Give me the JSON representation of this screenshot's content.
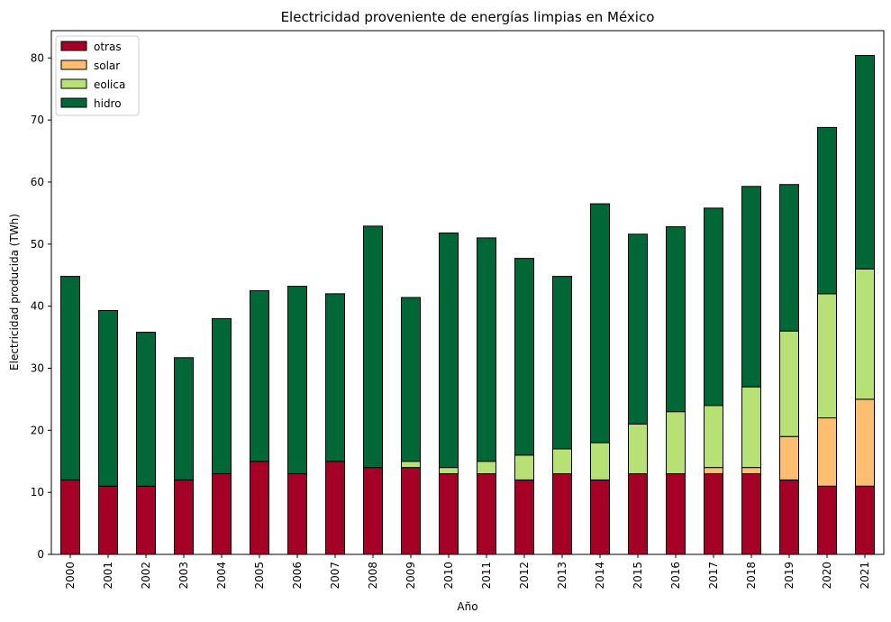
{
  "chart_data": {
    "type": "bar",
    "stacked": true,
    "title": "Electricidad proveniente de energías limpias en México",
    "xlabel": "Año",
    "ylabel": "Electricidad producida (TWh)",
    "ylim": [
      0,
      84.4
    ],
    "yticks": [
      0,
      10,
      20,
      30,
      40,
      50,
      60,
      70,
      80
    ],
    "grid": false,
    "legend_position": "top-left",
    "categories": [
      "2000",
      "2001",
      "2002",
      "2003",
      "2004",
      "2005",
      "2006",
      "2007",
      "2008",
      "2009",
      "2010",
      "2011",
      "2012",
      "2013",
      "2014",
      "2015",
      "2016",
      "2017",
      "2018",
      "2019",
      "2020",
      "2021"
    ],
    "series": [
      {
        "name": "otras",
        "color": "#a50026",
        "values": [
          12,
          11,
          11,
          12,
          13,
          15,
          13,
          15,
          14,
          14,
          13,
          13,
          12,
          13,
          12,
          13,
          13,
          13,
          13,
          12,
          11,
          11
        ]
      },
      {
        "name": "solar",
        "color": "#fdbf6f",
        "values": [
          0,
          0,
          0,
          0,
          0,
          0,
          0,
          0,
          0,
          0,
          0,
          0,
          0,
          0,
          0,
          0,
          0,
          1,
          1,
          7,
          11,
          14
        ]
      },
      {
        "name": "eolica",
        "color": "#b7e075",
        "values": [
          0,
          0,
          0,
          0,
          0,
          0,
          0,
          0,
          0,
          1,
          1,
          2,
          4,
          4,
          6,
          8,
          10,
          10,
          13,
          17,
          20,
          21
        ]
      },
      {
        "name": "hidro",
        "color": "#006837",
        "values": [
          32.8,
          28.3,
          24.8,
          19.7,
          25,
          27.5,
          30.2,
          27,
          38.9,
          26.4,
          37.8,
          36,
          31.7,
          27.8,
          38.5,
          30.6,
          29.8,
          31.8,
          32.3,
          23.6,
          26.8,
          34.4
        ]
      }
    ]
  }
}
